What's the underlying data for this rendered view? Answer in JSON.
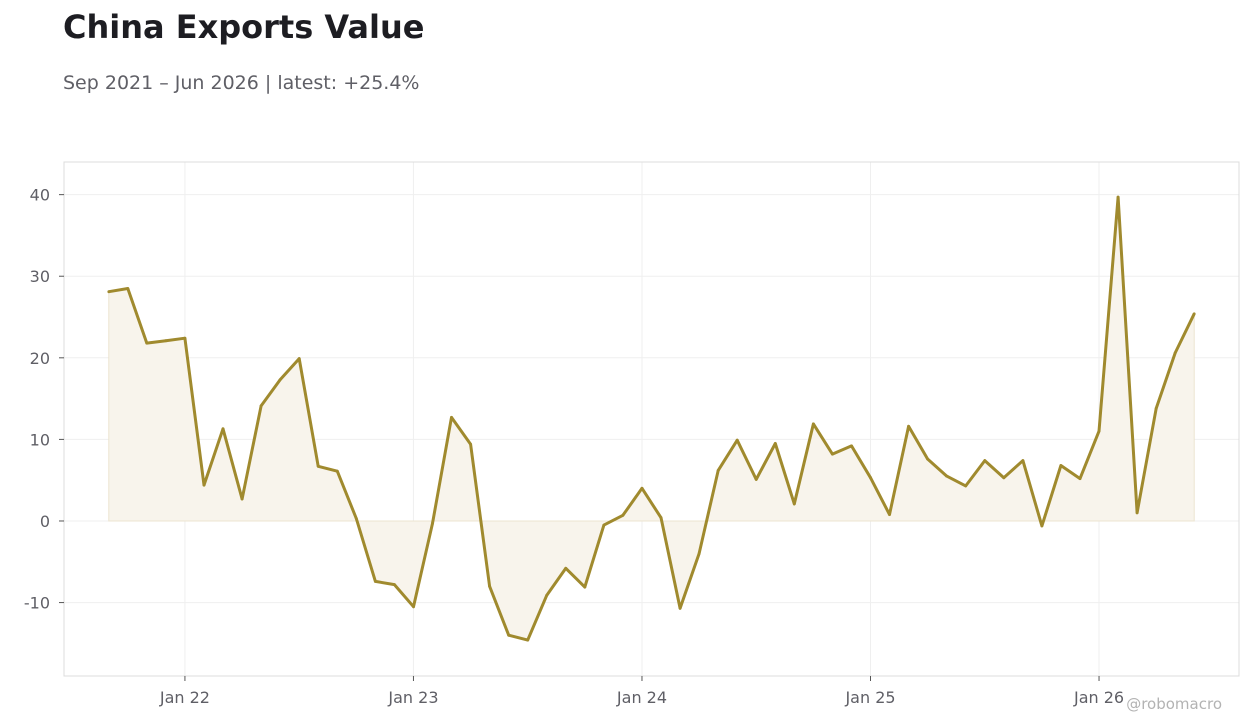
{
  "chart_data": {
    "type": "area",
    "title": "China Exports Value",
    "subtitle": "Sep 2021 – Jun 2026 | latest: +25.4%",
    "xlabel": "",
    "ylabel": "",
    "ylim": [
      -19,
      44
    ],
    "yticks": [
      -10,
      0,
      10,
      20,
      30,
      40
    ],
    "xticks": [
      {
        "date": "2022-01",
        "label": "Jan 22"
      },
      {
        "date": "2023-01",
        "label": "Jan 23"
      },
      {
        "date": "2024-01",
        "label": "Jan 24"
      },
      {
        "date": "2025-01",
        "label": "Jan 25"
      },
      {
        "date": "2026-01",
        "label": "Jan 26"
      }
    ],
    "grid": true,
    "legend": "none",
    "line_color": "#a08a2e",
    "fill_color": "#f8f4ec",
    "series": [
      {
        "x": [
          "2021-09",
          "2021-10",
          "2021-11",
          "2021-12",
          "2022-01",
          "2022-02",
          "2022-03",
          "2022-04",
          "2022-05",
          "2022-06",
          "2022-07",
          "2022-08",
          "2022-09",
          "2022-10",
          "2022-11",
          "2022-12",
          "2023-01",
          "2023-02",
          "2023-03",
          "2023-04",
          "2023-05",
          "2023-06",
          "2023-07",
          "2023-08",
          "2023-09",
          "2023-10",
          "2023-11",
          "2023-12",
          "2024-01",
          "2024-02",
          "2024-03",
          "2024-04",
          "2024-05",
          "2024-06",
          "2024-07",
          "2024-08",
          "2024-09",
          "2024-10",
          "2024-11",
          "2024-12",
          "2025-01",
          "2025-02",
          "2025-03",
          "2025-04",
          "2025-05",
          "2025-06",
          "2025-07",
          "2025-08",
          "2025-09",
          "2025-10",
          "2025-11",
          "2025-12",
          "2026-01",
          "2026-02",
          "2026-03",
          "2026-04",
          "2026-05",
          "2026-06"
        ],
        "values": [
          28.1,
          28.5,
          21.8,
          22.1,
          22.4,
          4.4,
          11.3,
          2.7,
          14.1,
          17.3,
          19.9,
          6.7,
          6.1,
          0.3,
          -7.4,
          -7.8,
          -10.5,
          -0.3,
          12.7,
          9.4,
          -8.0,
          -14.0,
          -14.6,
          -9.1,
          -5.8,
          -8.1,
          -0.5,
          0.7,
          4.0,
          0.4,
          -10.7,
          -4.0,
          6.2,
          9.9,
          5.1,
          9.5,
          2.1,
          11.9,
          8.2,
          9.2,
          5.3,
          0.8,
          11.6,
          7.6,
          5.5,
          4.3,
          7.4,
          5.3,
          7.4,
          -0.6,
          6.8,
          5.2,
          11.0,
          39.7,
          1.0,
          13.8,
          20.6,
          25.4
        ]
      }
    ]
  },
  "watermark": "@robomacro"
}
